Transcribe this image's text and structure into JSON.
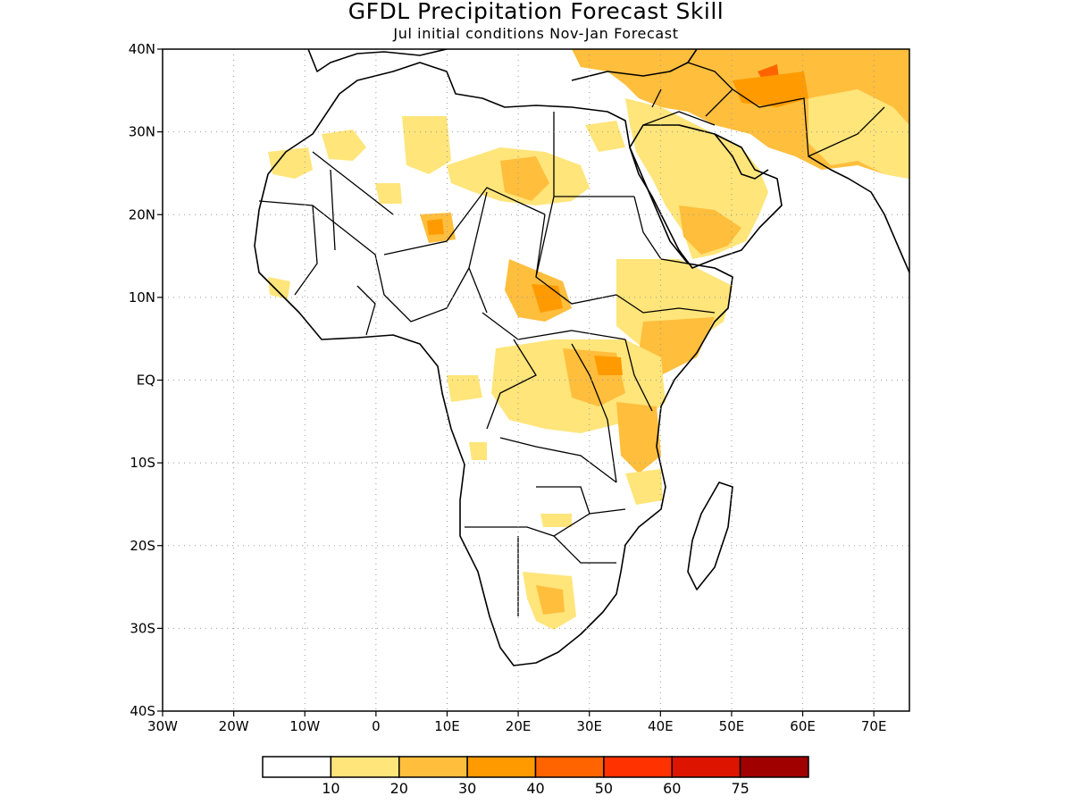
{
  "title": "GFDL Precipitation Forecast Skill",
  "subtitle": "Jul initial conditions  Nov-Jan Forecast",
  "map": {
    "lat_labels": [
      "40N",
      "30N",
      "20N",
      "10N",
      "EQ",
      "10S",
      "20S",
      "30S",
      "40S"
    ],
    "lon_labels": [
      "30W",
      "20W",
      "10W",
      "0",
      "10E",
      "20E",
      "30E",
      "40E",
      "50E",
      "60E",
      "70E"
    ],
    "lon_range": [
      -30,
      75
    ],
    "lat_range": [
      -40,
      40
    ],
    "grid": "dotted"
  },
  "colorbar": {
    "labels": [
      "10",
      "20",
      "30",
      "40",
      "50",
      "60",
      "75"
    ],
    "colors": [
      "#ffffff",
      "#ffe57a",
      "#ffbe3c",
      "#ff9a00",
      "#ff6400",
      "#ff3200",
      "#dc1400",
      "#a00000"
    ]
  }
}
